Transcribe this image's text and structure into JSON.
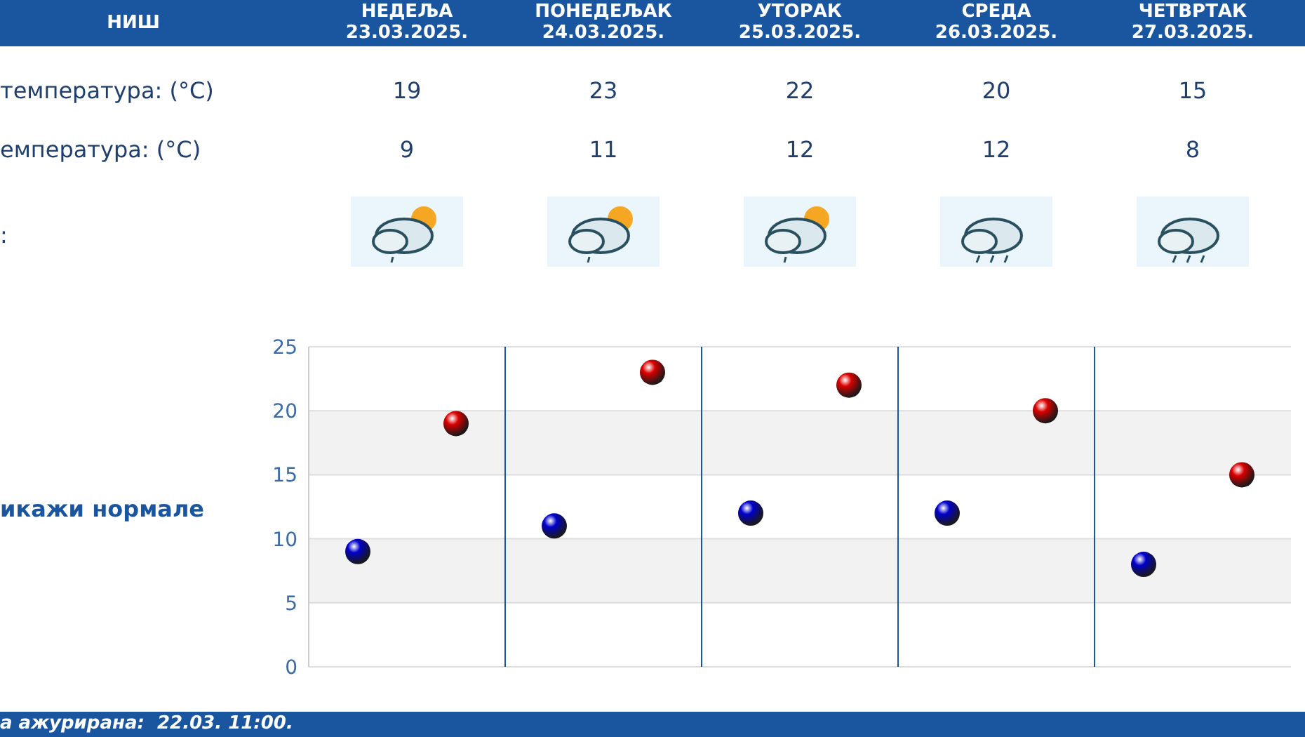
{
  "chart_data": {
    "type": "scatter",
    "title": "НИШ",
    "categories": [
      null,
      null,
      null,
      null,
      null
    ],
    "series": [
      {
        "color": "#dd0000",
        "values": [
          19,
          23,
          22,
          20,
          15
        ]
      },
      {
        "color": "#0000cc",
        "values": [
          9,
          11,
          12,
          12,
          8
        ]
      }
    ],
    "ylim": [
      0,
      25
    ],
    "yticks": [
      0,
      5,
      10,
      15,
      20,
      25
    ],
    "grid": true,
    "marker": "circle",
    "data_labels": true,
    "annotations": [
      "НЕДЕЉА 23.03.2025.",
      "ПОНЕДЕЉАК 24.03.2025.",
      "УТОРАК 25.03.2025.",
      "СРЕДА 26.03.2025.",
      "ЧЕТВРТАК 27.03.2025.",
      "температура: (°C)",
      "емпература: (°C)",
      ":",
      "икажи нормале",
      "а ажурирана:  22.03. 11:00."
    ]
  }
}
